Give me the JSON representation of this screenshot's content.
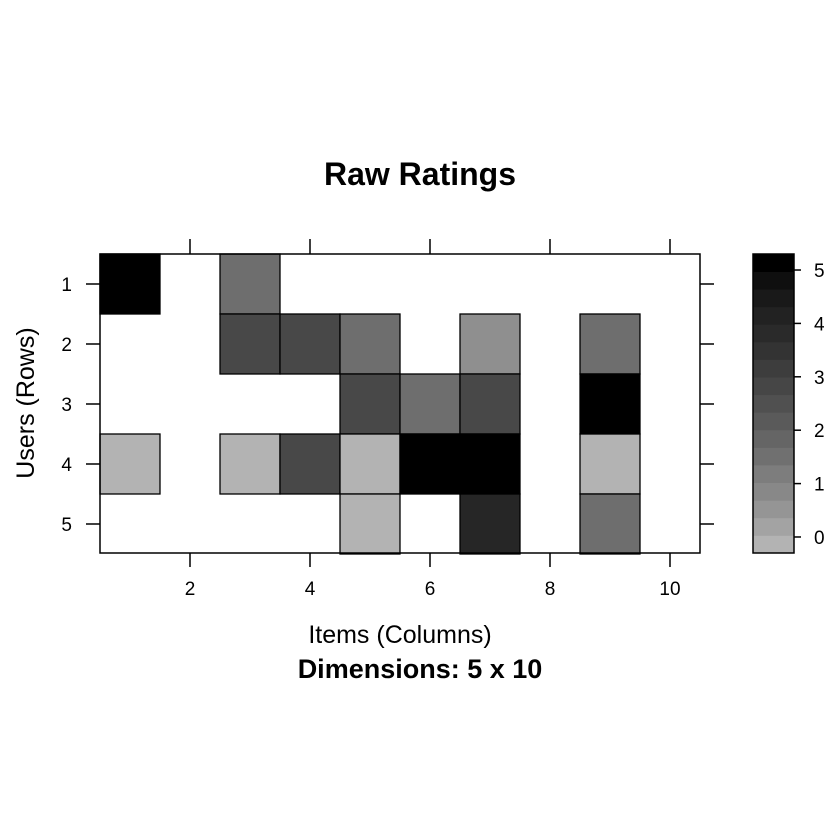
{
  "chart_data": {
    "type": "heatmap",
    "title": "Raw Ratings",
    "xlabel": "Items (Columns)",
    "ylabel": "Users (Rows)",
    "sublabel": "Dimensions: 5 x 10",
    "rows": [
      1,
      2,
      3,
      4,
      5
    ],
    "columns": [
      1,
      2,
      3,
      4,
      5,
      6,
      7,
      8,
      9,
      10
    ],
    "x_tick_labels": [
      "2",
      "4",
      "6",
      "8",
      "10"
    ],
    "y_tick_labels": [
      "1",
      "2",
      "3",
      "4",
      "5"
    ],
    "values": [
      [
        5,
        null,
        2,
        null,
        null,
        null,
        null,
        null,
        null,
        null
      ],
      [
        null,
        null,
        3,
        3,
        2,
        null,
        1,
        null,
        2,
        null
      ],
      [
        null,
        null,
        null,
        null,
        3,
        2,
        3,
        null,
        5,
        null
      ],
      [
        0,
        null,
        0,
        3,
        0,
        5,
        5,
        null,
        0,
        null
      ],
      [
        null,
        null,
        null,
        null,
        0,
        null,
        4,
        null,
        2,
        null
      ]
    ],
    "colorbar": {
      "range": [
        -0.3,
        5.3
      ],
      "tick_labels": [
        "0",
        "1",
        "2",
        "3",
        "4",
        "5"
      ],
      "palette": [
        "#b3b3b3",
        "#a3a3a3",
        "#959595",
        "#888888",
        "#7d7d7d",
        "#707070",
        "#656565",
        "#5a5a5a",
        "#505050",
        "#464646",
        "#3d3d3d",
        "#333333",
        "#2a2a2a",
        "#222222",
        "#191919",
        "#0f0f0f",
        "#000000"
      ],
      "missing_color": "#ffffff"
    },
    "cell_colors": {
      "0": "#b3b3b3",
      "1": "#8f8f8f",
      "2": "#6e6e6e",
      "3": "#484848",
      "4": "#262626",
      "5": "#000000"
    },
    "grid": false,
    "legend": "right"
  }
}
